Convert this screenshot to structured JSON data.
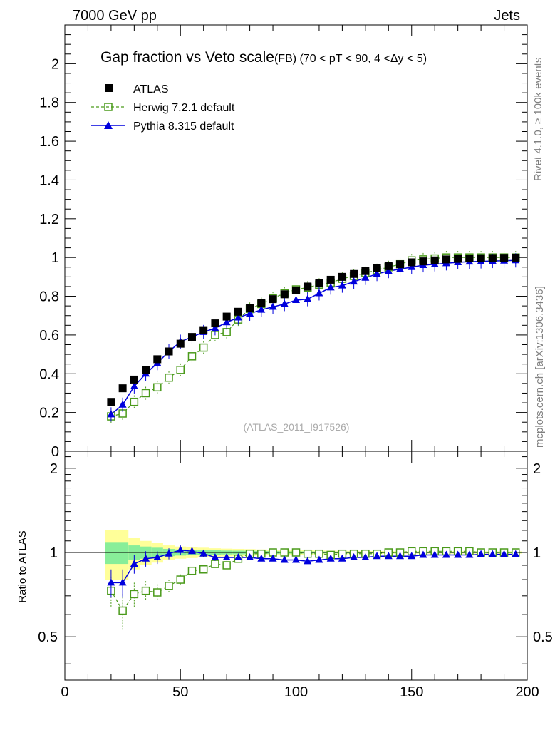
{
  "header": {
    "left": "7000 GeV pp",
    "right": "Jets",
    "side_rivet": "Rivet 4.1.0, ≥ 100k events",
    "side_mcplots": "mcplots.cern.ch [arXiv:1306.3436]"
  },
  "colors": {
    "atlas": "#000000",
    "herwig": "#4a9a1a",
    "pythia": "#0000dd",
    "band_outer": "#ffff99",
    "band_inner": "#88ee99"
  },
  "chart_data": [
    {
      "type": "scatter",
      "title": "Gap fraction vs Veto scale",
      "subtitle": "(FB) (70 < pT <  90, 4 <Δy < 5)",
      "watermark": "(ATLAS_2011_I917526)",
      "xlabel": "",
      "ylabel": "",
      "xlim": [
        0,
        200
      ],
      "ylim": [
        0,
        2.2
      ],
      "yticks": [
        0,
        0.2,
        0.4,
        0.6,
        0.8,
        1,
        1.2,
        1.4,
        1.6,
        1.8,
        2
      ],
      "ytick_labels": [
        "0",
        "0.2",
        "0.4",
        "0.6",
        "0.8",
        "1",
        "1.2",
        "1.4",
        "1.6",
        "1.8",
        "2"
      ],
      "legend": [
        "ATLAS",
        "Herwig 7.2.1 default",
        "Pythia 8.315 default"
      ],
      "x": [
        20,
        25,
        30,
        35,
        40,
        45,
        50,
        55,
        60,
        65,
        70,
        75,
        80,
        85,
        90,
        95,
        100,
        105,
        110,
        115,
        120,
        125,
        130,
        135,
        140,
        145,
        150,
        155,
        160,
        165,
        170,
        175,
        180,
        185,
        190,
        195
      ],
      "series": [
        {
          "name": "ATLAS",
          "values": [
            0.255,
            0.325,
            0.37,
            0.42,
            0.475,
            0.515,
            0.555,
            0.59,
            0.625,
            0.66,
            0.695,
            0.72,
            0.74,
            0.765,
            0.785,
            0.81,
            0.83,
            0.85,
            0.87,
            0.885,
            0.9,
            0.915,
            0.93,
            0.945,
            0.955,
            0.965,
            0.975,
            0.98,
            0.985,
            0.99,
            0.993,
            0.995,
            0.996,
            0.997,
            0.998,
            0.999
          ]
        },
        {
          "name": "Herwig 7.2.1 default",
          "values": [
            0.18,
            0.195,
            0.255,
            0.3,
            0.33,
            0.38,
            0.42,
            0.49,
            0.535,
            0.6,
            0.615,
            0.68,
            0.735,
            0.76,
            0.79,
            0.815,
            0.835,
            0.845,
            0.86,
            0.87,
            0.89,
            0.905,
            0.92,
            0.935,
            0.95,
            0.965,
            0.985,
            0.99,
            0.995,
            1.0,
            1.0,
            1.0,
            1.0,
            1.0,
            1.0,
            1.0
          ]
        },
        {
          "name": "Pythia 8.315 default",
          "values": [
            0.19,
            0.24,
            0.335,
            0.4,
            0.455,
            0.515,
            0.565,
            0.59,
            0.615,
            0.635,
            0.665,
            0.69,
            0.71,
            0.73,
            0.745,
            0.76,
            0.78,
            0.785,
            0.815,
            0.845,
            0.855,
            0.875,
            0.895,
            0.915,
            0.93,
            0.94,
            0.95,
            0.96,
            0.965,
            0.97,
            0.975,
            0.978,
            0.98,
            0.982,
            0.983,
            0.985
          ]
        }
      ]
    },
    {
      "type": "scatter",
      "title": "",
      "xlabel": "",
      "ylabel": "Ratio to ATLAS",
      "xlim": [
        0,
        200
      ],
      "ylim": [
        0.35,
        2.3
      ],
      "yscale": "log",
      "yticks": [
        0.5,
        1,
        2
      ],
      "ytick_labels": [
        "0.5",
        "1",
        "2"
      ],
      "xticks": [
        0,
        50,
        100,
        150,
        200
      ],
      "xtick_labels": [
        "0",
        "50",
        "100",
        "150",
        "200"
      ],
      "x": [
        20,
        25,
        30,
        35,
        40,
        45,
        50,
        55,
        60,
        65,
        70,
        75,
        80,
        85,
        90,
        95,
        100,
        105,
        110,
        115,
        120,
        125,
        130,
        135,
        140,
        145,
        150,
        155,
        160,
        165,
        170,
        175,
        180,
        185,
        190,
        195
      ],
      "band_outer": [
        0.2,
        0.2,
        0.13,
        0.1,
        0.08,
        0.06,
        0.05,
        0.045,
        0.04,
        0.035,
        0.032,
        0.03,
        0.028,
        0.025,
        0.023,
        0.02,
        0.02,
        0.018,
        0.016,
        0.015,
        0.014,
        0.013,
        0.012,
        0.012,
        0.011,
        0.01,
        0.01,
        0.01,
        0.01,
        0.01,
        0.01,
        0.01,
        0.01,
        0.01,
        0.01,
        0.01
      ],
      "band_inner": [
        0.09,
        0.09,
        0.06,
        0.05,
        0.04,
        0.03,
        0.025,
        0.022,
        0.02,
        0.018,
        0.016,
        0.015,
        0.014,
        0.012,
        0.011,
        0.01,
        0.01,
        0.009,
        0.008,
        0.008,
        0.007,
        0.007,
        0.006,
        0.006,
        0.005,
        0.005,
        0.005,
        0.005,
        0.005,
        0.005,
        0.005,
        0.005,
        0.005,
        0.005,
        0.005,
        0.005
      ],
      "series": [
        {
          "name": "Herwig 7.2.1 default",
          "values": [
            0.73,
            0.62,
            0.71,
            0.73,
            0.72,
            0.76,
            0.8,
            0.86,
            0.87,
            0.91,
            0.9,
            0.95,
            0.99,
            0.99,
            1.0,
            1.0,
            1.0,
            0.99,
            0.99,
            0.98,
            0.99,
            0.99,
            0.99,
            0.99,
            1.0,
            1.0,
            1.01,
            1.01,
            1.01,
            1.01,
            1.01,
            1.01,
            1.0,
            1.0,
            1.0,
            1.0
          ],
          "errors": [
            0.09,
            0.09,
            0.07,
            0.06,
            0.05,
            0.04,
            0.035,
            0.03,
            0.028,
            0.025,
            0.022,
            0.02,
            0.018,
            0.016,
            0.015,
            0.014,
            0.013,
            0.012,
            0.011,
            0.011,
            0.01,
            0.01,
            0.01,
            0.01,
            0.01,
            0.01,
            0.01,
            0.01,
            0.01,
            0.01,
            0.01,
            0.01,
            0.01,
            0.01,
            0.01,
            0.01
          ]
        },
        {
          "name": "Pythia 8.315 default",
          "values": [
            0.78,
            0.78,
            0.91,
            0.95,
            0.96,
            0.99,
            1.02,
            1.01,
            0.99,
            0.96,
            0.96,
            0.96,
            0.96,
            0.95,
            0.95,
            0.94,
            0.94,
            0.93,
            0.94,
            0.95,
            0.95,
            0.96,
            0.96,
            0.97,
            0.97,
            0.97,
            0.97,
            0.98,
            0.98,
            0.98,
            0.98,
            0.98,
            0.985,
            0.985,
            0.985,
            0.985
          ],
          "errors": [
            0.09,
            0.09,
            0.07,
            0.06,
            0.05,
            0.045,
            0.04,
            0.035,
            0.03,
            0.026,
            0.023,
            0.02,
            0.018,
            0.016,
            0.015,
            0.014,
            0.013,
            0.012,
            0.011,
            0.011,
            0.01,
            0.01,
            0.01,
            0.01,
            0.01,
            0.01,
            0.01,
            0.01,
            0.01,
            0.01,
            0.01,
            0.01,
            0.01,
            0.01,
            0.01,
            0.01
          ]
        }
      ]
    }
  ]
}
